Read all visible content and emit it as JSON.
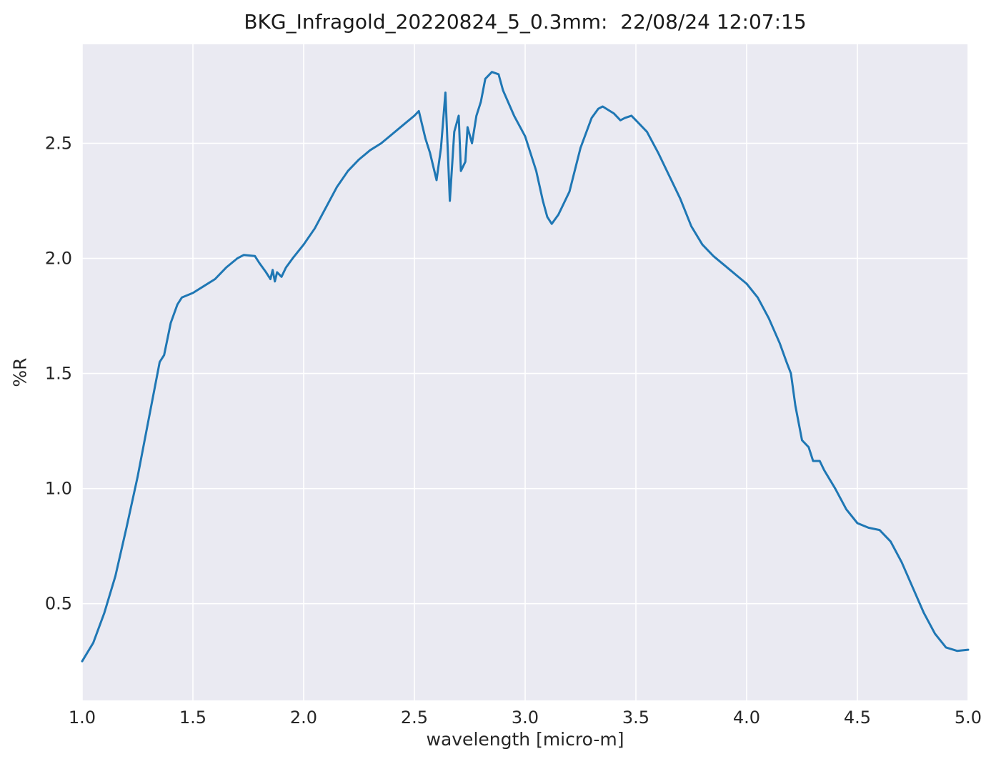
{
  "chart_data": {
    "type": "line",
    "title": "BKG_Infragold_20220824_5_0.3mm:  22/08/24 12:07:15",
    "xlabel": "wavelength [micro-m]",
    "ylabel": "%R",
    "xlim": [
      1.0,
      5.0
    ],
    "ylim": [
      0.08,
      2.93
    ],
    "xticks": [
      1.0,
      1.5,
      2.0,
      2.5,
      3.0,
      3.5,
      4.0,
      4.5,
      5.0
    ],
    "yticks": [
      0.5,
      1.0,
      1.5,
      2.0,
      2.5
    ],
    "grid": true,
    "legend": "none",
    "colors": {
      "line": "#1f77b4",
      "plot_bg": "#eaeaf2",
      "grid": "#ffffff",
      "tick_text": "#262626",
      "figure_bg": "#ffffff"
    },
    "x": [
      1.0,
      1.05,
      1.1,
      1.15,
      1.2,
      1.25,
      1.3,
      1.33,
      1.35,
      1.37,
      1.4,
      1.43,
      1.45,
      1.5,
      1.55,
      1.6,
      1.65,
      1.7,
      1.73,
      1.78,
      1.8,
      1.83,
      1.85,
      1.86,
      1.87,
      1.88,
      1.9,
      1.92,
      1.95,
      2.0,
      2.05,
      2.1,
      2.15,
      2.2,
      2.25,
      2.3,
      2.35,
      2.4,
      2.45,
      2.5,
      2.52,
      2.55,
      2.57,
      2.6,
      2.62,
      2.64,
      2.66,
      2.68,
      2.7,
      2.71,
      2.73,
      2.74,
      2.76,
      2.78,
      2.8,
      2.82,
      2.85,
      2.88,
      2.9,
      2.95,
      3.0,
      3.05,
      3.08,
      3.1,
      3.12,
      3.15,
      3.2,
      3.25,
      3.3,
      3.33,
      3.35,
      3.4,
      3.43,
      3.45,
      3.48,
      3.5,
      3.55,
      3.6,
      3.65,
      3.7,
      3.75,
      3.8,
      3.85,
      3.9,
      3.95,
      4.0,
      4.05,
      4.1,
      4.15,
      4.18,
      4.2,
      4.22,
      4.25,
      4.28,
      4.3,
      4.33,
      4.35,
      4.4,
      4.45,
      4.5,
      4.55,
      4.6,
      4.65,
      4.7,
      4.75,
      4.8,
      4.85,
      4.9,
      4.95,
      5.0
    ],
    "y": [
      0.25,
      0.33,
      0.46,
      0.62,
      0.83,
      1.05,
      1.3,
      1.45,
      1.55,
      1.58,
      1.72,
      1.8,
      1.83,
      1.85,
      1.88,
      1.91,
      1.96,
      2.0,
      2.015,
      2.01,
      1.98,
      1.94,
      1.91,
      1.95,
      1.9,
      1.94,
      1.92,
      1.96,
      2.0,
      2.06,
      2.13,
      2.22,
      2.31,
      2.38,
      2.43,
      2.47,
      2.5,
      2.54,
      2.58,
      2.62,
      2.64,
      2.52,
      2.46,
      2.34,
      2.48,
      2.72,
      2.25,
      2.55,
      2.62,
      2.38,
      2.42,
      2.57,
      2.5,
      2.62,
      2.68,
      2.78,
      2.81,
      2.8,
      2.73,
      2.62,
      2.53,
      2.38,
      2.25,
      2.18,
      2.15,
      2.19,
      2.29,
      2.48,
      2.61,
      2.65,
      2.66,
      2.63,
      2.6,
      2.61,
      2.62,
      2.6,
      2.55,
      2.46,
      2.36,
      2.26,
      2.14,
      2.06,
      2.01,
      1.97,
      1.93,
      1.89,
      1.83,
      1.74,
      1.63,
      1.55,
      1.5,
      1.36,
      1.21,
      1.18,
      1.12,
      1.12,
      1.08,
      1.0,
      0.91,
      0.85,
      0.83,
      0.82,
      0.77,
      0.68,
      0.57,
      0.46,
      0.37,
      0.31,
      0.295,
      0.3
    ]
  }
}
